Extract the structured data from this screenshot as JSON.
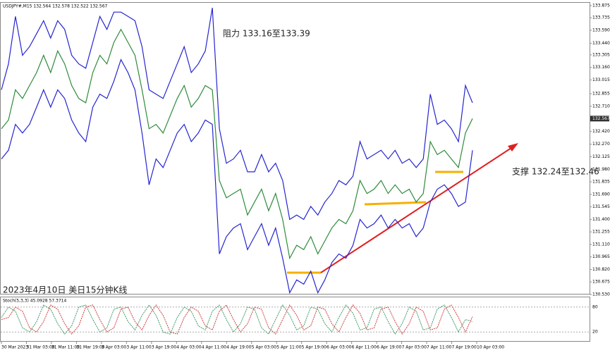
{
  "chart_data": {
    "type": "line",
    "title": "USDJPY#,M15  132.564 132.578 132.522 132.567",
    "annotations": [
      "阻力 133.16至133.39",
      "支撑 132.24至132.46",
      "2023年4月10日 美日15分钟K线"
    ],
    "current_price": 132.567,
    "ylim": [
      130.53,
      133.875
    ],
    "yticks": [
      133.875,
      133.735,
      {
        "value": 133.59,
        "label": "133.590"
      },
      {
        "value": 133.44,
        "label": "133.440"
      },
      133.305,
      {
        "value": 133.16,
        "label": "133.160"
      },
      133.015,
      132.855,
      {
        "value": 132.71,
        "label": "132.710"
      },
      {
        "value": 132.42,
        "label": "132.420"
      },
      {
        "value": 132.27,
        "label": "132.270"
      },
      132.125,
      {
        "value": 131.98,
        "label": "131.980"
      },
      131.835,
      {
        "value": 131.69,
        "label": "131.690"
      },
      131.545,
      {
        "value": 131.4,
        "label": "131.400"
      },
      131.255,
      {
        "value": 131.11,
        "label": "131.110"
      },
      130.965,
      {
        "value": 130.82,
        "label": "130.820"
      },
      130.675,
      {
        "value": 130.53,
        "label": "130.530"
      }
    ],
    "xticks_labels": [
      "30 Mar 2023",
      "31 Mar 03:00",
      "31 Mar 11:00",
      "31 Mar 19:00",
      "3 Apr 03:00",
      "3 Apr 11:00",
      "3 Apr 19:00",
      "4 Apr 03:00",
      "4 Apr 11:00",
      "4 Apr 19:00",
      "5 Apr 03:00",
      "5 Apr 11:00",
      "5 Apr 19:00",
      "6 Apr 03:00",
      "6 Apr 11:00",
      "6 Apr 19:00",
      "7 Apr 03:00",
      "7 Apr 11:00",
      "7 Apr 19:00",
      "10 Apr 03:00"
    ],
    "series": [
      {
        "color": "#2e8b3a",
        "values": [
          132.45,
          132.55,
          132.9,
          132.8,
          132.95,
          133.1,
          133.3,
          133.1,
          133.35,
          133.2,
          132.95,
          132.8,
          132.75,
          133.1,
          133.3,
          133.2,
          133.45,
          133.6,
          133.45,
          133.3,
          132.9,
          132.45,
          132.5,
          132.4,
          132.6,
          132.8,
          132.95,
          132.7,
          132.8,
          132.95,
          132.9,
          131.85,
          131.65,
          131.7,
          131.75,
          131.45,
          131.6,
          131.75,
          131.5,
          131.7,
          131.4,
          130.95,
          131.1,
          131.05,
          131.2,
          131.0,
          131.15,
          131.3,
          131.4,
          131.35,
          131.5,
          131.85,
          131.7,
          131.75,
          131.85,
          131.7,
          131.8,
          131.7,
          131.75,
          131.6,
          131.7,
          132.3,
          132.15,
          132.2,
          132.1,
          132.0,
          132.4,
          132.567
        ]
      },
      {
        "color": "#2525d0",
        "values": [
          132.9,
          133.2,
          133.75,
          133.3,
          133.4,
          133.55,
          133.7,
          133.5,
          133.7,
          133.6,
          133.3,
          133.2,
          133.15,
          133.45,
          133.75,
          133.6,
          133.8,
          133.8,
          133.75,
          133.7,
          133.4,
          132.9,
          132.85,
          132.8,
          133.0,
          133.2,
          133.4,
          133.1,
          133.2,
          133.35,
          133.85,
          132.45,
          132.05,
          132.1,
          132.2,
          131.95,
          131.95,
          132.15,
          131.95,
          132.05,
          131.85,
          131.4,
          131.45,
          131.4,
          131.55,
          131.45,
          131.6,
          131.7,
          131.85,
          131.8,
          131.9,
          132.3,
          132.1,
          132.15,
          132.2,
          132.1,
          132.2,
          132.05,
          132.1,
          132.0,
          132.1,
          132.85,
          132.5,
          132.55,
          132.45,
          132.3,
          132.95,
          132.75
        ]
      },
      {
        "color": "#2525d0",
        "values": [
          132.1,
          132.2,
          132.5,
          132.4,
          132.5,
          132.7,
          132.9,
          132.7,
          132.9,
          132.8,
          132.55,
          132.4,
          132.3,
          132.7,
          132.85,
          132.8,
          133.0,
          133.25,
          133.1,
          132.9,
          132.4,
          131.8,
          132.1,
          132.0,
          132.2,
          132.4,
          132.5,
          132.3,
          132.4,
          132.55,
          132.5,
          131.0,
          131.2,
          131.3,
          131.35,
          131.05,
          131.2,
          131.35,
          131.1,
          131.3,
          130.95,
          130.55,
          130.7,
          130.65,
          130.8,
          130.55,
          130.7,
          130.9,
          131.0,
          130.95,
          131.1,
          131.4,
          131.3,
          131.35,
          131.45,
          131.3,
          131.4,
          131.3,
          131.35,
          131.2,
          131.3,
          131.6,
          131.75,
          131.8,
          131.7,
          131.55,
          131.6,
          132.2
        ]
      }
    ],
    "stoch": {
      "label": "Stoch(5,3,3) 45.0928 57.3714",
      "ylim": [
        0,
        100
      ],
      "yticks": [
        80,
        20
      ],
      "series": [
        {
          "color": "#3f9a6a",
          "values": [
            55,
            80,
            70,
            30,
            20,
            45,
            85,
            75,
            40,
            15,
            35,
            80,
            85,
            50,
            20,
            30,
            75,
            80,
            45,
            25,
            60,
            85,
            60,
            20,
            15,
            55,
            80,
            70,
            35,
            25,
            70,
            85,
            50,
            20,
            40,
            80,
            75,
            30,
            15,
            50,
            85,
            60,
            25,
            35,
            80,
            75,
            40,
            20,
            55,
            85,
            65,
            25,
            30,
            75,
            80,
            45,
            15,
            40,
            80,
            70,
            25,
            30,
            75,
            85,
            55,
            20,
            50,
            45
          ]
        },
        {
          "color": "#d04040",
          "values": [
            50,
            55,
            80,
            70,
            30,
            20,
            45,
            85,
            75,
            40,
            15,
            35,
            80,
            85,
            50,
            20,
            30,
            75,
            80,
            45,
            25,
            60,
            85,
            60,
            20,
            15,
            55,
            80,
            70,
            35,
            25,
            70,
            85,
            50,
            20,
            40,
            80,
            75,
            30,
            15,
            50,
            85,
            60,
            25,
            35,
            80,
            75,
            40,
            20,
            55,
            85,
            65,
            25,
            30,
            75,
            80,
            45,
            15,
            40,
            80,
            70,
            25,
            30,
            75,
            85,
            55,
            20,
            57
          ]
        }
      ]
    }
  }
}
